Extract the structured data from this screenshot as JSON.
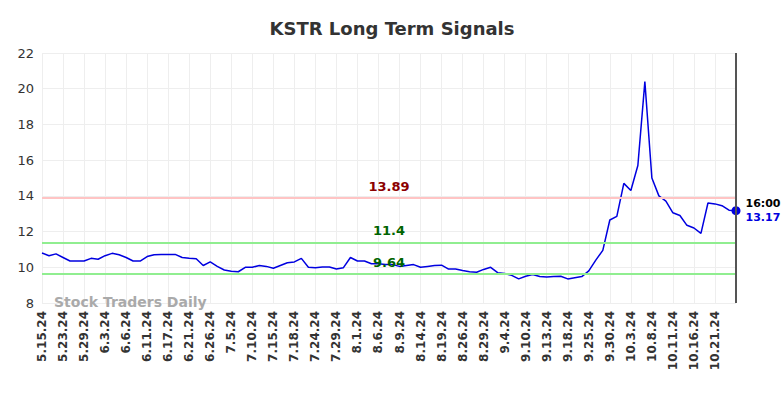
{
  "chart_data": {
    "type": "line",
    "title": "KSTR Long Term Signals",
    "categories": [
      "5.15.24",
      null,
      null,
      "5.23.24",
      null,
      null,
      "5.29.24",
      null,
      null,
      "6.3.24",
      null,
      null,
      "6.6.24",
      null,
      null,
      "6.11.24",
      null,
      null,
      "6.17.24",
      null,
      null,
      "6.21.24",
      null,
      null,
      "6.26.24",
      null,
      null,
      "7.5.24",
      null,
      null,
      "7.10.24",
      null,
      null,
      "7.15.24",
      null,
      null,
      "7.18.24",
      null,
      null,
      "7.24.24",
      null,
      null,
      "7.29.24",
      null,
      null,
      "8.1.24",
      null,
      null,
      "8.6.24",
      null,
      null,
      "8.9.24",
      null,
      null,
      "8.14.24",
      null,
      null,
      "8.19.24",
      null,
      null,
      "8.26.24",
      null,
      null,
      "8.29.24",
      null,
      null,
      "9.4.24",
      null,
      null,
      "9.10.24",
      null,
      null,
      "9.13.24",
      null,
      null,
      "9.18.24",
      null,
      null,
      "9.25.24",
      null,
      null,
      "9.30.24",
      null,
      null,
      "10.3.24",
      null,
      null,
      "10.8.24",
      null,
      null,
      "10.11.24",
      null,
      null,
      "10.16.24",
      null,
      null,
      "10.21.24",
      null,
      null,
      null
    ],
    "values": [
      10.8,
      10.65,
      10.75,
      10.55,
      10.35,
      10.35,
      10.35,
      10.5,
      10.45,
      10.65,
      10.78,
      10.7,
      10.55,
      10.35,
      10.35,
      10.6,
      10.7,
      10.72,
      10.72,
      10.72,
      10.55,
      10.5,
      10.48,
      10.1,
      10.3,
      10.05,
      9.85,
      9.78,
      9.75,
      10.0,
      10.0,
      10.1,
      10.05,
      9.95,
      10.1,
      10.25,
      10.3,
      10.5,
      10.0,
      9.98,
      10.02,
      10.02,
      9.9,
      9.98,
      10.55,
      10.35,
      10.35,
      10.2,
      10.2,
      10.15,
      10.15,
      10.05,
      10.1,
      10.15,
      10.0,
      10.05,
      10.1,
      10.12,
      9.9,
      9.9,
      9.82,
      9.75,
      9.72,
      9.88,
      10.0,
      9.7,
      9.65,
      9.55,
      9.35,
      9.5,
      9.6,
      9.48,
      9.45,
      9.48,
      9.5,
      9.35,
      9.42,
      9.48,
      9.8,
      10.4,
      10.95,
      12.65,
      12.85,
      14.7,
      14.3,
      15.7,
      20.4,
      15.0,
      14.0,
      13.7,
      13.05,
      12.9,
      12.35,
      12.2,
      11.9,
      13.6,
      13.55,
      13.45,
      13.2,
      13.17
    ],
    "color": "#0000e0",
    "ylim": [
      8,
      22
    ],
    "yticks": [
      8,
      10,
      12,
      14,
      16,
      18,
      20,
      22
    ],
    "grid": true,
    "signals": [
      {
        "value": 13.89,
        "color": "#ffc4c4",
        "label_color": "#8b0000"
      },
      {
        "value": 11.4,
        "color": "#90ee90",
        "label_color": "#006400"
      },
      {
        "value": 9.64,
        "color": "#90ee90",
        "label_color": "#006400"
      }
    ],
    "last_point": {
      "time": "16:00",
      "value": 13.17
    },
    "watermark": "Stock Traders Daily"
  }
}
